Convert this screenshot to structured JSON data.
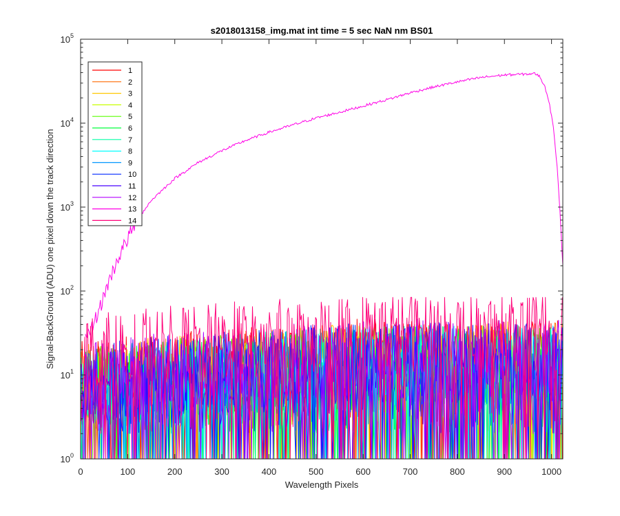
{
  "chart_data": {
    "type": "line",
    "title": "s2018013158_img.mat int time = 5 sec  NaN nm BS01",
    "xlabel": "Wavelength Pixels",
    "ylabel": "Signal-BackGround (ADU) one pixel down the track direction",
    "xlim": [
      0,
      1024
    ],
    "ylim": [
      1,
      100000
    ],
    "yscale": "log",
    "x_ticks": [
      "0",
      "100",
      "200",
      "300",
      "400",
      "500",
      "600",
      "700",
      "800",
      "900",
      "1000"
    ],
    "x_tick_values": [
      0,
      100,
      200,
      300,
      400,
      500,
      600,
      700,
      800,
      900,
      1000
    ],
    "y_ticks": [
      {
        "base": "10",
        "exp": "0",
        "value": 1
      },
      {
        "base": "10",
        "exp": "1",
        "value": 10
      },
      {
        "base": "10",
        "exp": "2",
        "value": 100
      },
      {
        "base": "10",
        "exp": "3",
        "value": 1000
      },
      {
        "base": "10",
        "exp": "4",
        "value": 10000
      },
      {
        "base": "10",
        "exp": "5",
        "value": 100000
      }
    ],
    "grid": false,
    "legend_position": "top-left",
    "series": [
      {
        "name": "1",
        "color": "#ff0000",
        "level": 12,
        "upper": 40
      },
      {
        "name": "2",
        "color": "#ff6a00",
        "level": 11,
        "upper": 38
      },
      {
        "name": "3",
        "color": "#ffc800",
        "level": 11,
        "upper": 38
      },
      {
        "name": "4",
        "color": "#c8ff00",
        "level": 10,
        "upper": 36
      },
      {
        "name": "5",
        "color": "#5aff00",
        "level": 10,
        "upper": 36
      },
      {
        "name": "6",
        "color": "#00ff3c",
        "level": 10,
        "upper": 36
      },
      {
        "name": "7",
        "color": "#00ffa5",
        "level": 10,
        "upper": 36
      },
      {
        "name": "8",
        "color": "#00ffff",
        "level": 10,
        "upper": 36
      },
      {
        "name": "9",
        "color": "#0096ff",
        "level": 10,
        "upper": 40
      },
      {
        "name": "10",
        "color": "#0028ff",
        "level": 11,
        "upper": 45
      },
      {
        "name": "11",
        "color": "#4600ff",
        "level": 11,
        "upper": 45
      },
      {
        "name": "12",
        "color": "#b400ff",
        "level": 12,
        "upper": 45
      },
      {
        "name": "13",
        "color": "#ff00e6",
        "points": [
          [
            10,
            25
          ],
          [
            20,
            32
          ],
          [
            30,
            45
          ],
          [
            40,
            60
          ],
          [
            50,
            90
          ],
          [
            60,
            130
          ],
          [
            70,
            180
          ],
          [
            80,
            250
          ],
          [
            100,
            420
          ],
          [
            120,
            700
          ],
          [
            150,
            1200
          ],
          [
            200,
            2200
          ],
          [
            250,
            3400
          ],
          [
            300,
            4700
          ],
          [
            350,
            6200
          ],
          [
            400,
            7800
          ],
          [
            450,
            9500
          ],
          [
            500,
            11500
          ],
          [
            550,
            13500
          ],
          [
            600,
            16000
          ],
          [
            650,
            19000
          ],
          [
            700,
            23000
          ],
          [
            750,
            27000
          ],
          [
            800,
            31000
          ],
          [
            850,
            35000
          ],
          [
            900,
            37500
          ],
          [
            950,
            38500
          ],
          [
            965,
            39000
          ],
          [
            975,
            36000
          ],
          [
            985,
            28000
          ],
          [
            995,
            18000
          ],
          [
            1005,
            8000
          ],
          [
            1012,
            3000
          ],
          [
            1018,
            900
          ],
          [
            1024,
            200
          ]
        ]
      },
      {
        "name": "14",
        "color": "#ff0078",
        "level": 25,
        "upper": 70
      }
    ]
  }
}
